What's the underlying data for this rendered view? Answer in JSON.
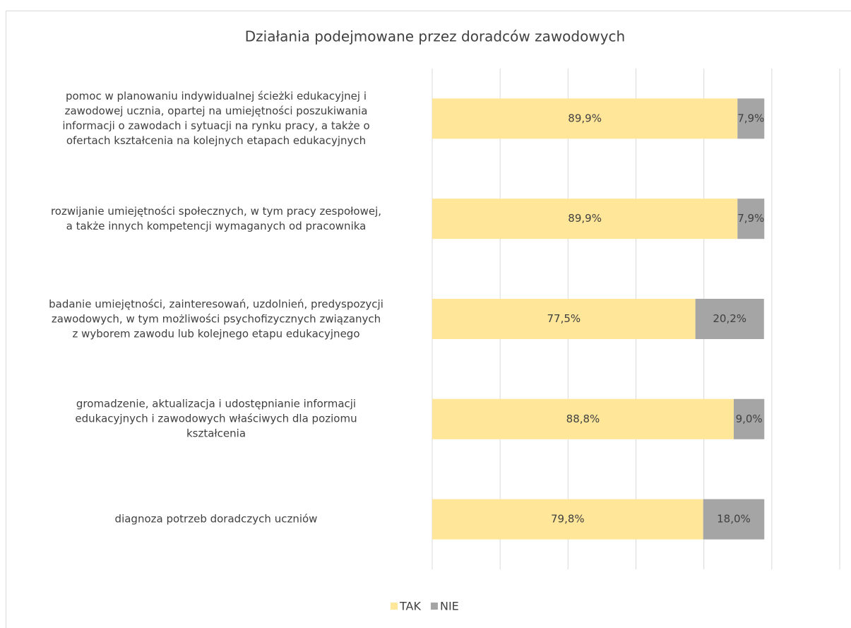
{
  "chart_data": {
    "type": "stacked_barh",
    "title": "Działania podejmowane przez doradców zawodowych",
    "categories": [
      "pomoc w planowaniu indywidualnej ścieżki edukacyjnej i\nzawodowej ucznia, opartej na umiejętności poszukiwania\ninformacji o zawodach i sytuacji na rynku pracy, a także o\nofertach kształcenia na kolejnych etapach edukacyjnych",
      "rozwijanie umiejętności społecznych, w tym pracy zespołowej,\na także innych kompetencji wymaganych od pracownika",
      "badanie umiejętności, zainteresowań, uzdolnień, predyspozycji\nzawodowych, w tym możliwości psychofizycznych związanych\nz wyborem zawodu lub kolejnego etapu edukacyjnego",
      "gromadzenie, aktualizacja i udostępnianie informacji\nedukacyjnych i zawodowych właściwych dla poziomu\nkształcenia",
      "diagnoza potrzeb doradczych uczniów"
    ],
    "series": [
      {
        "name": "TAK",
        "color": "#ffe699",
        "values": [
          89.9,
          89.9,
          77.5,
          88.8,
          79.8
        ],
        "value_labels": [
          "89,9%",
          "89,9%",
          "77,5%",
          "88,8%",
          "79,8%"
        ]
      },
      {
        "name": "NIE",
        "color": "#a5a5a5",
        "values": [
          7.9,
          7.9,
          20.2,
          9.0,
          18.0
        ],
        "value_labels": [
          "7,9%",
          "7,9%",
          "20,2%",
          "9,0%",
          "18,0%"
        ]
      }
    ],
    "xlim": [
      0,
      120
    ],
    "xticks": [
      0,
      20,
      40,
      60,
      80,
      100,
      120
    ],
    "grid": true,
    "legend": "bottom"
  }
}
